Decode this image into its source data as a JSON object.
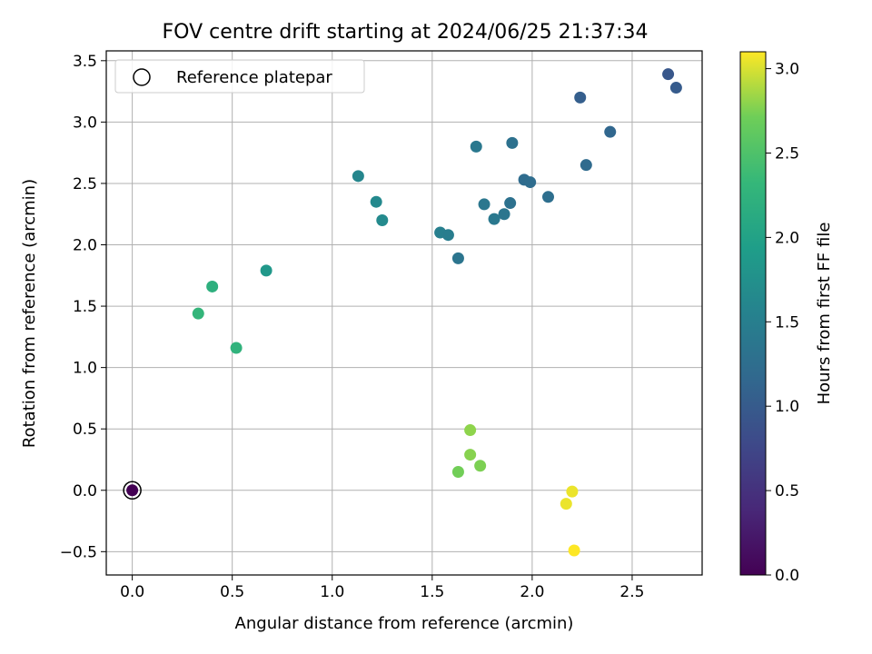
{
  "chart_data": {
    "type": "scatter",
    "title": "FOV centre drift starting at 2024/06/25 21:37:34",
    "xlabel": "Angular distance from reference (arcmin)",
    "ylabel": "Rotation from reference (arcmin)",
    "xlim": [
      -0.13,
      2.85
    ],
    "ylim": [
      -0.69,
      3.58
    ],
    "x_ticks": [
      0.0,
      0.5,
      1.0,
      1.5,
      2.0,
      2.5
    ],
    "x_tick_labels": [
      "0.0",
      "0.5",
      "1.0",
      "1.5",
      "2.0",
      "2.5"
    ],
    "y_ticks": [
      -0.5,
      0.0,
      0.5,
      1.0,
      1.5,
      2.0,
      2.5,
      3.0,
      3.5
    ],
    "y_tick_labels": [
      "−0.5",
      "0.0",
      "0.5",
      "1.0",
      "1.5",
      "2.0",
      "2.5",
      "3.0",
      "3.5"
    ],
    "grid": true,
    "legend": {
      "placement": "top-left",
      "entries": [
        "Reference platepar"
      ]
    },
    "colorbar": {
      "label": "Hours from first FF file",
      "range": [
        0.0,
        3.1
      ],
      "ticks": [
        0.0,
        0.5,
        1.0,
        1.5,
        2.0,
        2.5,
        3.0
      ],
      "tick_labels": [
        "0.0",
        "0.5",
        "1.0",
        "1.5",
        "2.0",
        "2.5",
        "3.0"
      ],
      "colormap": "viridis"
    },
    "reference_point": {
      "x": 0.0,
      "y": 0.0,
      "c": 0.0
    },
    "points": [
      {
        "x": 0.0,
        "y": 0.0,
        "c": 0.0
      },
      {
        "x": 2.68,
        "y": 3.39,
        "c": 0.95
      },
      {
        "x": 2.72,
        "y": 3.28,
        "c": 1.0
      },
      {
        "x": 2.24,
        "y": 3.2,
        "c": 1.05
      },
      {
        "x": 2.39,
        "y": 2.92,
        "c": 1.15
      },
      {
        "x": 2.27,
        "y": 2.65,
        "c": 1.2
      },
      {
        "x": 1.9,
        "y": 2.83,
        "c": 1.3
      },
      {
        "x": 1.72,
        "y": 2.8,
        "c": 1.4
      },
      {
        "x": 1.96,
        "y": 2.53,
        "c": 1.22
      },
      {
        "x": 1.99,
        "y": 2.51,
        "c": 1.24
      },
      {
        "x": 2.08,
        "y": 2.39,
        "c": 1.26
      },
      {
        "x": 1.89,
        "y": 2.34,
        "c": 1.3
      },
      {
        "x": 1.76,
        "y": 2.33,
        "c": 1.38
      },
      {
        "x": 1.86,
        "y": 2.25,
        "c": 1.36
      },
      {
        "x": 1.81,
        "y": 2.21,
        "c": 1.4
      },
      {
        "x": 1.63,
        "y": 1.89,
        "c": 1.35
      },
      {
        "x": 1.54,
        "y": 2.1,
        "c": 1.5
      },
      {
        "x": 1.58,
        "y": 2.08,
        "c": 1.48
      },
      {
        "x": 1.13,
        "y": 2.56,
        "c": 1.6
      },
      {
        "x": 1.22,
        "y": 2.35,
        "c": 1.65
      },
      {
        "x": 1.25,
        "y": 2.2,
        "c": 1.66
      },
      {
        "x": 0.67,
        "y": 1.79,
        "c": 1.85
      },
      {
        "x": 0.4,
        "y": 1.66,
        "c": 2.2
      },
      {
        "x": 0.33,
        "y": 1.44,
        "c": 2.3
      },
      {
        "x": 0.52,
        "y": 1.16,
        "c": 2.25
      },
      {
        "x": 1.69,
        "y": 0.49,
        "c": 2.8
      },
      {
        "x": 1.69,
        "y": 0.29,
        "c": 2.78
      },
      {
        "x": 1.74,
        "y": 0.2,
        "c": 2.75
      },
      {
        "x": 1.63,
        "y": 0.15,
        "c": 2.72
      },
      {
        "x": 2.2,
        "y": -0.01,
        "c": 3.05
      },
      {
        "x": 2.17,
        "y": -0.11,
        "c": 3.05
      },
      {
        "x": 2.21,
        "y": -0.49,
        "c": 3.1
      }
    ]
  }
}
